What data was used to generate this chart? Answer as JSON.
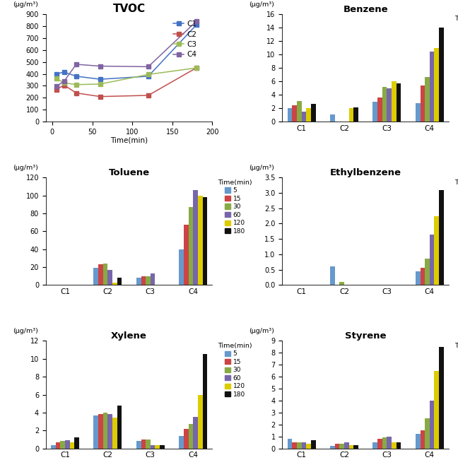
{
  "tvoc": {
    "title": "TVOC",
    "ylabel": "(μg/m³)",
    "xlabel": "Time(min)",
    "times": [
      5,
      15,
      30,
      60,
      120,
      180
    ],
    "C1": [
      400,
      415,
      380,
      355,
      380,
      810
    ],
    "C2": [
      270,
      305,
      240,
      210,
      220,
      450
    ],
    "C3": [
      360,
      325,
      310,
      315,
      395,
      450
    ],
    "C4": [
      295,
      340,
      480,
      465,
      460,
      840
    ],
    "colors": {
      "C1": "#4472c4",
      "C2": "#c0504d",
      "C3": "#9bbb59",
      "C4": "#8064a2"
    },
    "ylim": [
      0,
      900
    ],
    "yticks": [
      0,
      100,
      200,
      300,
      400,
      500,
      600,
      700,
      800,
      900
    ]
  },
  "benzene": {
    "title": "Benzene",
    "ylabel": "(μg/m³)",
    "categories": [
      "C1",
      "C2",
      "C3",
      "C4"
    ],
    "data": {
      "C1": [
        2.0,
        2.4,
        3.1,
        1.5,
        2.0,
        2.6
      ],
      "C2": [
        1.1,
        0.0,
        0.0,
        0.0,
        2.0,
        2.1
      ],
      "C3": [
        3.0,
        3.6,
        5.2,
        5.0,
        6.0,
        5.7
      ],
      "C4": [
        2.7,
        5.4,
        6.6,
        10.4,
        11.0,
        14.0
      ]
    },
    "ylim": [
      0,
      16
    ],
    "yticks": [
      0,
      2,
      4,
      6,
      8,
      10,
      12,
      14,
      16
    ]
  },
  "toluene": {
    "title": "Toluene",
    "ylabel": "(μg/m³)",
    "categories": [
      "C1",
      "C2",
      "C3",
      "C4"
    ],
    "data": {
      "C1": [
        0,
        0,
        0,
        0,
        0,
        0
      ],
      "C2": [
        19,
        23,
        24,
        17,
        3,
        8
      ],
      "C3": [
        8,
        10,
        10,
        13,
        0,
        0
      ],
      "C4": [
        40,
        67,
        87,
        106,
        100,
        98
      ]
    },
    "ylim": [
      0,
      120
    ],
    "yticks": [
      0,
      20,
      40,
      60,
      80,
      100,
      120
    ]
  },
  "ethylbenzene": {
    "title": "Ethylbenzene",
    "ylabel": "(μg/m³)",
    "categories": [
      "C1",
      "C2",
      "C3",
      "C4"
    ],
    "data": {
      "C1": [
        0.0,
        0.0,
        0.0,
        0.0,
        0.0,
        0.0
      ],
      "C2": [
        0.6,
        0.0,
        0.1,
        0.0,
        0.0,
        0.0
      ],
      "C3": [
        0.0,
        0.0,
        0.0,
        0.0,
        0.0,
        0.0
      ],
      "C4": [
        0.45,
        0.55,
        0.85,
        1.65,
        2.25,
        3.1
      ]
    },
    "ylim": [
      0,
      3.5
    ],
    "yticks": [
      0.0,
      0.5,
      1.0,
      1.5,
      2.0,
      2.5,
      3.0,
      3.5
    ]
  },
  "xylene": {
    "title": "Xylene",
    "ylabel": "(μg/m³)",
    "categories": [
      "C1",
      "C2",
      "C3",
      "C4"
    ],
    "data": {
      "C1": [
        0.4,
        0.7,
        0.8,
        0.9,
        0.7,
        1.2
      ],
      "C2": [
        3.7,
        3.8,
        4.0,
        3.8,
        3.4,
        4.8
      ],
      "C3": [
        0.8,
        1.0,
        1.0,
        0.35,
        0.35,
        0.35
      ],
      "C4": [
        1.4,
        2.2,
        2.7,
        3.5,
        6.0,
        10.5
      ]
    },
    "ylim": [
      0,
      12
    ],
    "yticks": [
      0,
      2,
      4,
      6,
      8,
      10,
      12
    ]
  },
  "styrene": {
    "title": "Styrene",
    "ylabel": "(μg/m³)",
    "categories": [
      "C1",
      "C2",
      "C3",
      "C4"
    ],
    "data": {
      "C1": [
        0.8,
        0.5,
        0.5,
        0.5,
        0.4,
        0.7
      ],
      "C2": [
        0.2,
        0.4,
        0.4,
        0.5,
        0.3,
        0.3
      ],
      "C3": [
        0.5,
        0.8,
        0.9,
        1.0,
        0.5,
        0.5
      ],
      "C4": [
        1.2,
        1.5,
        2.5,
        4.0,
        6.5,
        8.5
      ]
    },
    "ylim": [
      0,
      9
    ],
    "yticks": [
      0,
      1,
      2,
      3,
      4,
      5,
      6,
      7,
      8,
      9
    ]
  },
  "bar_colors": {
    "5": "#6699cc",
    "15": "#cc4444",
    "30": "#88aa44",
    "60": "#7766aa",
    "120": "#ddcc00",
    "180": "#111111"
  },
  "legend_labels": [
    "5",
    "15",
    "30",
    "60",
    "120",
    "180"
  ],
  "legend_title": "Time(min)"
}
